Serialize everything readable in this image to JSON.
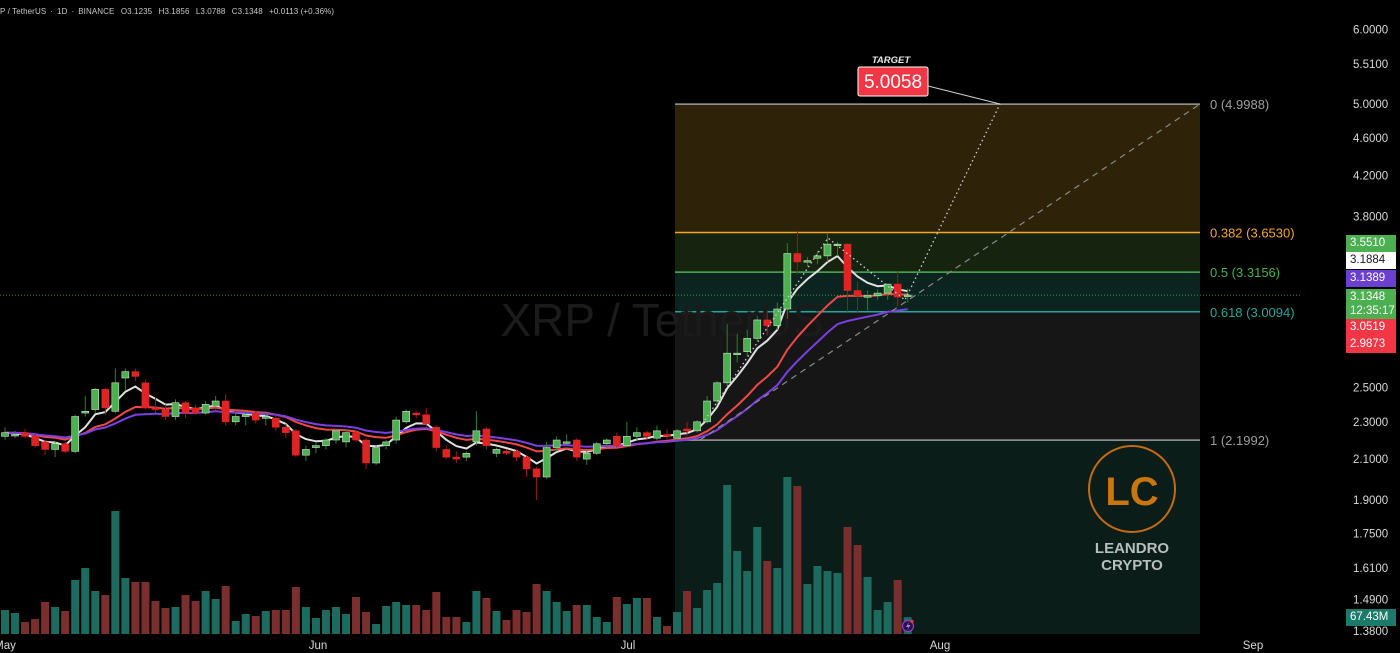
{
  "legend": {
    "symbol": "P / TetherUS",
    "interval": "1D",
    "exchange": "BINANCE",
    "open": "O3.1235",
    "high": "H3.1856",
    "low": "L3.0788",
    "close": "C3.1348",
    "change": "+0.0113 (+0.36%)"
  },
  "watermark": "XRP / TetherUS",
  "target": {
    "title": "TARGET",
    "value": "5.0058"
  },
  "logo": {
    "line1": "LEANDRO",
    "line2": "CRYPTO",
    "monogram": "LC"
  },
  "colors": {
    "background": "#000000",
    "up": "#4caf50",
    "down": "#e02424",
    "vol_up": "#1c6b5e",
    "vol_down": "#7b2e2e",
    "ma_fast": "#e0e0e0",
    "ma_mid": "#f04848",
    "ma_slow": "#7b3fe4",
    "target_box": "#f23645",
    "current_line": "#4caf50"
  },
  "chart_data": {
    "type": "candlestick",
    "title": "XRP / TetherUS · 1D · BINANCE",
    "yscale": "log",
    "ylim": [
      1.38,
      6.0
    ],
    "grid": false,
    "x_start_date": "May 1",
    "x_ticks": [
      "May",
      "Jun",
      "Jul",
      "Aug",
      "Sep"
    ],
    "y_ticks": [
      "6.0000",
      "5.5100",
      "5.0000",
      "4.6000",
      "4.2000",
      "3.8000",
      "2.5000",
      "2.3000",
      "2.1000",
      "1.9000",
      "1.7500",
      "1.6100",
      "1.4900",
      "1.3800"
    ],
    "ohlc": [
      [
        2.22,
        2.27,
        2.2,
        2.24
      ],
      [
        2.23,
        2.25,
        2.21,
        2.23
      ],
      [
        2.24,
        2.26,
        2.21,
        2.22
      ],
      [
        2.22,
        2.23,
        2.16,
        2.17
      ],
      [
        2.19,
        2.2,
        2.12,
        2.15
      ],
      [
        2.15,
        2.19,
        2.11,
        2.18
      ],
      [
        2.18,
        2.19,
        2.13,
        2.14
      ],
      [
        2.14,
        2.34,
        2.13,
        2.33
      ],
      [
        2.35,
        2.45,
        2.33,
        2.36
      ],
      [
        2.37,
        2.5,
        2.35,
        2.49
      ],
      [
        2.49,
        2.5,
        2.34,
        2.38
      ],
      [
        2.36,
        2.62,
        2.35,
        2.53
      ],
      [
        2.56,
        2.62,
        2.48,
        2.6
      ],
      [
        2.6,
        2.62,
        2.54,
        2.57
      ],
      [
        2.53,
        2.55,
        2.37,
        2.38
      ],
      [
        2.38,
        2.44,
        2.35,
        2.37
      ],
      [
        2.37,
        2.4,
        2.31,
        2.33
      ],
      [
        2.33,
        2.43,
        2.31,
        2.41
      ],
      [
        2.41,
        2.42,
        2.32,
        2.35
      ],
      [
        2.38,
        2.4,
        2.34,
        2.35
      ],
      [
        2.35,
        2.42,
        2.34,
        2.4
      ],
      [
        2.39,
        2.45,
        2.37,
        2.42
      ],
      [
        2.42,
        2.46,
        2.28,
        2.3
      ],
      [
        2.3,
        2.35,
        2.28,
        2.33
      ],
      [
        2.33,
        2.36,
        2.28,
        2.34
      ],
      [
        2.35,
        2.36,
        2.29,
        2.31
      ],
      [
        2.32,
        2.35,
        2.28,
        2.33
      ],
      [
        2.32,
        2.34,
        2.25,
        2.27
      ],
      [
        2.27,
        2.29,
        2.21,
        2.24
      ],
      [
        2.25,
        2.26,
        2.11,
        2.12
      ],
      [
        2.12,
        2.17,
        2.09,
        2.15
      ],
      [
        2.16,
        2.19,
        2.13,
        2.17
      ],
      [
        2.17,
        2.21,
        2.15,
        2.2
      ],
      [
        2.2,
        2.26,
        2.18,
        2.25
      ],
      [
        2.19,
        2.26,
        2.16,
        2.24
      ],
      [
        2.24,
        2.25,
        2.19,
        2.2
      ],
      [
        2.2,
        2.21,
        2.05,
        2.08
      ],
      [
        2.08,
        2.17,
        2.07,
        2.16
      ],
      [
        2.17,
        2.2,
        2.15,
        2.19
      ],
      [
        2.2,
        2.33,
        2.18,
        2.31
      ],
      [
        2.3,
        2.37,
        2.29,
        2.36
      ],
      [
        2.35,
        2.36,
        2.32,
        2.34
      ],
      [
        2.34,
        2.38,
        2.27,
        2.29
      ],
      [
        2.27,
        2.28,
        2.14,
        2.16
      ],
      [
        2.15,
        2.17,
        2.1,
        2.11
      ],
      [
        2.11,
        2.14,
        2.08,
        2.1
      ],
      [
        2.11,
        2.14,
        2.09,
        2.13
      ],
      [
        2.19,
        2.36,
        2.17,
        2.25
      ],
      [
        2.26,
        2.27,
        2.15,
        2.17
      ],
      [
        2.13,
        2.16,
        2.11,
        2.15
      ],
      [
        2.14,
        2.15,
        2.12,
        2.13
      ],
      [
        2.14,
        2.15,
        2.09,
        2.11
      ],
      [
        2.11,
        2.12,
        2.01,
        2.05
      ],
      [
        2.05,
        2.06,
        1.9,
        2.01
      ],
      [
        2.01,
        2.19,
        2.0,
        2.16
      ],
      [
        2.16,
        2.22,
        2.14,
        2.2
      ],
      [
        2.19,
        2.23,
        2.17,
        2.19
      ],
      [
        2.2,
        2.21,
        2.09,
        2.11
      ],
      [
        2.1,
        2.14,
        2.07,
        2.13
      ],
      [
        2.13,
        2.19,
        2.12,
        2.18
      ],
      [
        2.18,
        2.21,
        2.16,
        2.2
      ],
      [
        2.22,
        2.24,
        2.16,
        2.17
      ],
      [
        2.17,
        2.3,
        2.16,
        2.22
      ],
      [
        2.22,
        2.27,
        2.2,
        2.24
      ],
      [
        2.24,
        2.25,
        2.2,
        2.22
      ],
      [
        2.21,
        2.28,
        2.2,
        2.25
      ],
      [
        2.23,
        2.26,
        2.2,
        2.22
      ],
      [
        2.21,
        2.26,
        2.19,
        2.25
      ],
      [
        2.26,
        2.3,
        2.22,
        2.25
      ],
      [
        2.25,
        2.31,
        2.24,
        2.3
      ],
      [
        2.3,
        2.45,
        2.29,
        2.42
      ],
      [
        2.42,
        2.54,
        2.4,
        2.53
      ],
      [
        2.53,
        2.92,
        2.51,
        2.72
      ],
      [
        2.72,
        2.85,
        2.66,
        2.72
      ],
      [
        2.73,
        2.88,
        2.7,
        2.82
      ],
      [
        2.82,
        2.98,
        2.8,
        2.95
      ],
      [
        2.95,
        3.02,
        2.84,
        2.91
      ],
      [
        2.91,
        3.08,
        2.88,
        3.03
      ],
      [
        3.03,
        3.56,
        2.96,
        3.47
      ],
      [
        3.47,
        3.66,
        3.3,
        3.4
      ],
      [
        3.41,
        3.44,
        3.36,
        3.41
      ],
      [
        3.43,
        3.49,
        3.38,
        3.45
      ],
      [
        3.45,
        3.65,
        3.4,
        3.55
      ],
      [
        3.55,
        3.57,
        3.45,
        3.55
      ],
      [
        3.55,
        3.56,
        3.01,
        3.17
      ],
      [
        3.17,
        3.24,
        3.0,
        3.13
      ],
      [
        3.13,
        3.17,
        3.02,
        3.13
      ],
      [
        3.13,
        3.18,
        3.1,
        3.15
      ],
      [
        3.15,
        3.22,
        3.1,
        3.22
      ],
      [
        3.22,
        3.32,
        3.05,
        3.12
      ],
      [
        3.1235,
        3.1856,
        3.0788,
        3.1348
      ]
    ],
    "volume_m": [
      96,
      84,
      48,
      60,
      128,
      108,
      92,
      216,
      264,
      172,
      156,
      492,
      224,
      208,
      208,
      132,
      104,
      108,
      156,
      132,
      172,
      140,
      192,
      52,
      80,
      72,
      92,
      96,
      96,
      188,
      108,
      64,
      96,
      108,
      80,
      148,
      88,
      40,
      112,
      128,
      116,
      116,
      96,
      168,
      68,
      68,
      48,
      172,
      144,
      92,
      56,
      96,
      88,
      200,
      172,
      128,
      92,
      116,
      116,
      68,
      48,
      148,
      120,
      144,
      144,
      68,
      32,
      88,
      172,
      104,
      176,
      204,
      596,
      332,
      252,
      428,
      292,
      264,
      628,
      592,
      200,
      272,
      252,
      244,
      428,
      356,
      228,
      96,
      128,
      216,
      67.43
    ],
    "fibonacci": [
      {
        "level": "0",
        "price": 4.9988,
        "label": "0 (4.9988)",
        "color": "#9e9e9e"
      },
      {
        "level": "0.382",
        "price": 3.653,
        "label": "0.382 (3.6530)",
        "color": "#f5a623"
      },
      {
        "level": "0.5",
        "price": 3.3156,
        "label": "0.5 (3.3156)",
        "color": "#4caf50"
      },
      {
        "level": "0.618",
        "price": 3.0094,
        "label": "0.618 (3.0094)",
        "color": "#26a69a"
      },
      {
        "level": "1",
        "price": 2.1992,
        "label": "1 (2.1992)",
        "color": "#9e9e9e"
      }
    ],
    "price_tags": [
      {
        "value": "3.5510",
        "bg": "#4caf50",
        "fg": "#ffffff"
      },
      {
        "value": "3.1884",
        "bg": "#ffffff",
        "fg": "#131722"
      },
      {
        "value": "3.1389",
        "bg": "#6b3fd0",
        "fg": "#ffffff"
      },
      {
        "value": "3.1348",
        "bg": "#4caf50",
        "fg": "#ffffff"
      },
      {
        "value": "12:35:17",
        "bg": "#4caf50",
        "fg": "#ffffff"
      },
      {
        "value": "3.0519",
        "bg": "#f23645",
        "fg": "#ffffff"
      },
      {
        "value": "2.9873",
        "bg": "#f23645",
        "fg": "#ffffff"
      }
    ],
    "volume_tag": {
      "value": "67.43M",
      "bg": "#1c7a6a",
      "fg": "#ffffff"
    },
    "current_price": 3.1348
  }
}
